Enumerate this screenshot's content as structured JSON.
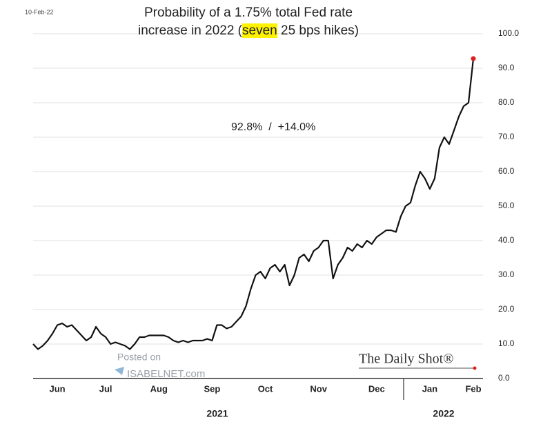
{
  "chart_data": {
    "type": "line",
    "date_stamp": "10-Feb-22",
    "title": {
      "line1": "Probability of a 1.75% total Fed rate",
      "line2_start": "increase in 2022 (",
      "highlight": "seven",
      "line2_end": " 25 bps hikes)"
    },
    "annotation": "92.8%  /  +14.0%",
    "watermark": {
      "line1": "Posted on",
      "line2": "ISABELNET.com"
    },
    "source": "The Daily Shot®",
    "years": [
      "2021",
      "2022"
    ],
    "categories": [
      null,
      null,
      null,
      null,
      null,
      "Jun",
      null,
      null,
      null,
      null,
      null,
      null,
      null,
      null,
      null,
      "Jul",
      null,
      null,
      null,
      null,
      null,
      null,
      null,
      null,
      null,
      null,
      "Aug",
      null,
      null,
      null,
      null,
      null,
      null,
      null,
      null,
      null,
      null,
      "Sep",
      null,
      null,
      null,
      null,
      null,
      null,
      null,
      null,
      null,
      null,
      "Oct",
      null,
      null,
      null,
      null,
      null,
      null,
      null,
      null,
      null,
      null,
      "Nov",
      null,
      null,
      null,
      null,
      null,
      null,
      null,
      null,
      null,
      null,
      null,
      "Dec",
      null,
      null,
      null,
      null,
      null,
      null,
      null,
      null,
      null,
      null,
      "Jan",
      null,
      null,
      null,
      null,
      null,
      null,
      null,
      null,
      "Feb"
    ],
    "series": [
      {
        "name": "Probability",
        "color": "#111111",
        "end_marker_color": "#e02020",
        "values": [
          10,
          8.5,
          9.5,
          11,
          13,
          15.5,
          16,
          15,
          15.5,
          14,
          12.5,
          11,
          12,
          15,
          13,
          12,
          10,
          10.5,
          10,
          9.5,
          8.5,
          10,
          12,
          12,
          12.5,
          12.5,
          12.5,
          12.5,
          12,
          11,
          10.5,
          11,
          10.5,
          11,
          11,
          11,
          11.5,
          11,
          15.5,
          15.5,
          14.5,
          15,
          16.5,
          18,
          21,
          26,
          30,
          31,
          29,
          32,
          33,
          31,
          33,
          27,
          30,
          35,
          36,
          34,
          37,
          38,
          40,
          40,
          29,
          33,
          35,
          38,
          37,
          39,
          38,
          40,
          39,
          41,
          42,
          43,
          43,
          42.5,
          47,
          50,
          51,
          56,
          60,
          58,
          55,
          58,
          67,
          70,
          68,
          72,
          76,
          79,
          80,
          92.8
        ]
      }
    ],
    "ylim": [
      0,
      100
    ],
    "yticks": [
      {
        "value": 0,
        "label": "0.0"
      },
      {
        "value": 10,
        "label": "10.0"
      },
      {
        "value": 20,
        "label": "20.0"
      },
      {
        "value": 30,
        "label": "30.0"
      },
      {
        "value": 40,
        "label": "40.0"
      },
      {
        "value": 50,
        "label": "50.0"
      },
      {
        "value": 60,
        "label": "60.0"
      },
      {
        "value": 70,
        "label": "70.0"
      },
      {
        "value": 80,
        "label": "80.0"
      },
      {
        "value": 90,
        "label": "90.0"
      },
      {
        "value": 100,
        "label": "100.0"
      }
    ],
    "grid": true
  }
}
